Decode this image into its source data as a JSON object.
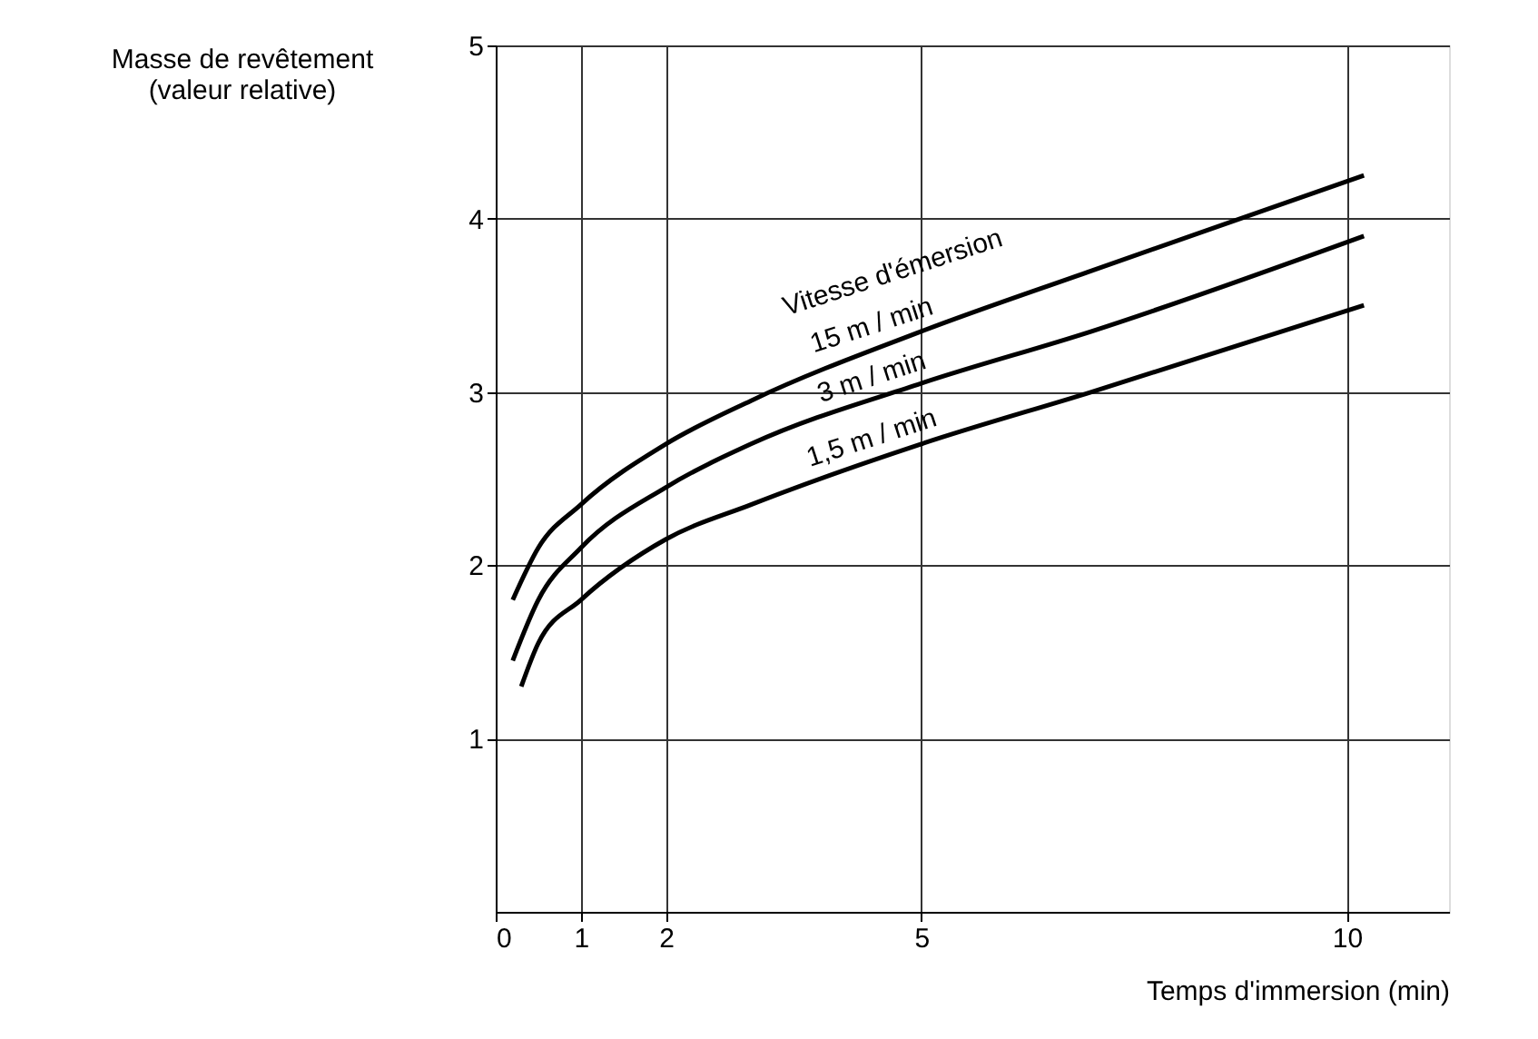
{
  "chart_data": {
    "type": "line",
    "ylabel": "Masse de revêtement\n(valeur relative)",
    "xlabel": "Temps d'immersion (min)",
    "legend_title": "Vitesse d'émersion",
    "xlim": [
      0,
      11.2
    ],
    "xticks": [
      0,
      1,
      2,
      5,
      10
    ],
    "ylim": [
      0,
      5
    ],
    "yticks": [
      1,
      2,
      3,
      4,
      5
    ],
    "grid": true,
    "line_style": "solid",
    "marker": "none",
    "series": [
      {
        "name": "15 m / min",
        "color": "#000000",
        "x": [
          0.2,
          0.5,
          1,
          2,
          3,
          5,
          7,
          10.2
        ],
        "values": [
          1.8,
          2.1,
          2.35,
          2.7,
          2.95,
          3.35,
          3.7,
          4.25
        ]
      },
      {
        "name": "3 m / min",
        "color": "#000000",
        "x": [
          0.2,
          0.5,
          1,
          2,
          3,
          5,
          7,
          10.2
        ],
        "values": [
          1.45,
          1.8,
          2.1,
          2.45,
          2.7,
          3.05,
          3.35,
          3.9
        ]
      },
      {
        "name": "1,5 m / min",
        "color": "#000000",
        "x": [
          0.3,
          0.5,
          1,
          2,
          3,
          5,
          7,
          10.2
        ],
        "values": [
          1.3,
          1.55,
          1.8,
          2.15,
          2.35,
          2.7,
          3.0,
          3.5
        ]
      }
    ]
  }
}
